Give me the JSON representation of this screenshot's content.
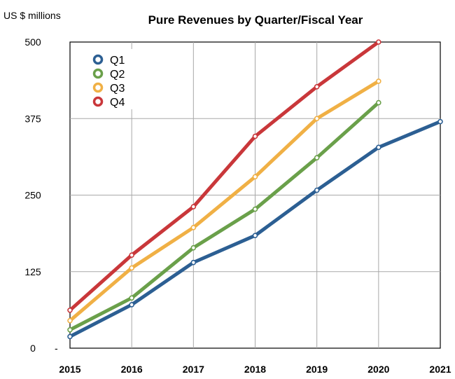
{
  "chart_data": {
    "type": "line",
    "title": "Pure Revenues by Quarter/Fiscal Year",
    "ylabel": "US $ millions",
    "xlabel": "",
    "x": [
      "2015",
      "2016",
      "2017",
      "2018",
      "2019",
      "2020",
      "2021"
    ],
    "yticks": [
      "0",
      "125",
      "250",
      "375",
      "500"
    ],
    "yticks_values": [
      0,
      125,
      250,
      375,
      500
    ],
    "ylim": [
      0,
      500
    ],
    "x_start_marker": "-",
    "grid": true,
    "legend_position": "top-left",
    "series": [
      {
        "name": "Q1",
        "color": "#2c5f93",
        "values": [
          19,
          71,
          140,
          184,
          258,
          328,
          370
        ]
      },
      {
        "name": "Q2",
        "color": "#6aa04a",
        "values": [
          30,
          82,
          164,
          227,
          311,
          401,
          null
        ]
      },
      {
        "name": "Q3",
        "color": "#f0b045",
        "values": [
          45,
          131,
          197,
          280,
          375,
          436,
          null
        ]
      },
      {
        "name": "Q4",
        "color": "#c9373a",
        "values": [
          62,
          152,
          231,
          346,
          427,
          500,
          null
        ]
      }
    ]
  }
}
